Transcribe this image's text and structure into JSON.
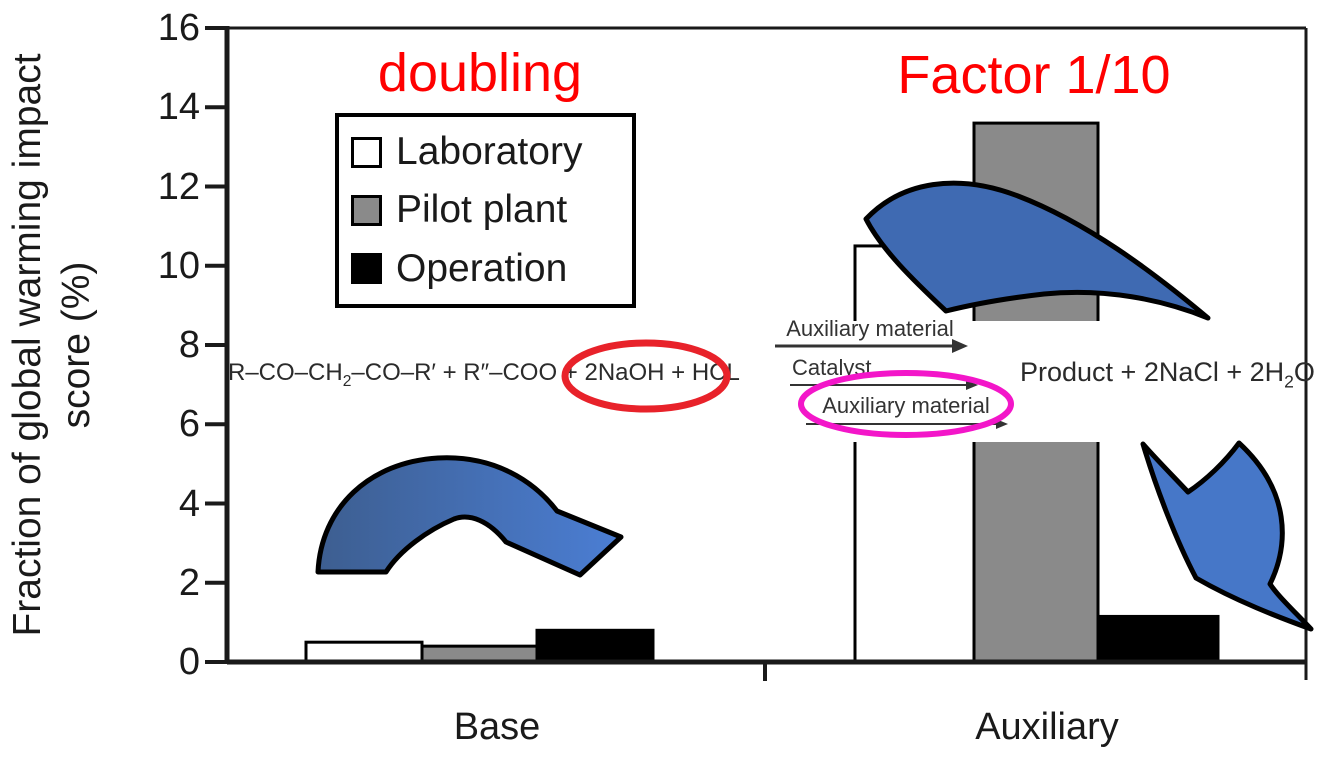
{
  "chart_data": {
    "type": "bar",
    "title": "",
    "ylabel_line1": "Fraction of global warming impact",
    "ylabel_line2": "score (%)",
    "categories": [
      "Base",
      "Auxiliary"
    ],
    "series": [
      {
        "name": "Laboratory",
        "color": "#ffffff",
        "values": [
          0.5,
          10.5
        ]
      },
      {
        "name": "Pilot plant",
        "color": "#8a8a8a",
        "values": [
          0.4,
          13.6
        ]
      },
      {
        "name": "Operation",
        "color": "#000000",
        "values": [
          0.8,
          1.15
        ]
      }
    ],
    "ylim": [
      0,
      16
    ],
    "yticks": [
      16,
      14,
      12,
      10,
      8,
      6,
      4,
      2,
      0
    ],
    "grid": false,
    "legend_position": "inside-top-left"
  },
  "annotations": {
    "doubling": {
      "text": "doubling",
      "color": "#ff0000"
    },
    "factor": {
      "text": "Factor 1/10",
      "color": "#ff0000"
    },
    "eq_left": {
      "pre": "R–CO–CH",
      "sub": "2",
      "post": "–CO–R′ + R″–COO + 2NaOH + HCL"
    },
    "eq_right": {
      "pre": "Product + 2NaCl + 2H",
      "sub": "2",
      "post": "O"
    },
    "scheme": {
      "line1": "Auxiliary material",
      "line2": "Catalyst",
      "line3": "Auxiliary material"
    },
    "red_ellipse_color": "#e8222a",
    "magenta_ellipse_color": "#f316c9",
    "arrow_color": "#4677c8",
    "arrow_color_dark": "#3d5e90"
  }
}
